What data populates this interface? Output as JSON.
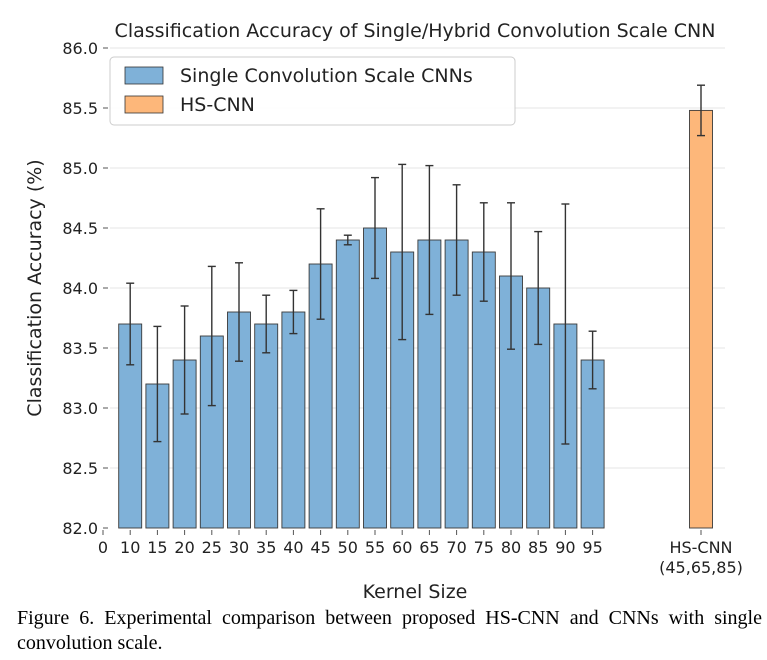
{
  "chart_data": {
    "type": "bar",
    "title": "Classification Accuracy of Single/Hybrid Convolution Scale CNN",
    "xlabel": "Kernel Size",
    "ylabel": "Classification Accuracy (%)",
    "ylim": [
      82.0,
      86.0
    ],
    "yticks": [
      "82.0",
      "82.5",
      "83.0",
      "83.5",
      "84.0",
      "84.5",
      "85.0",
      "85.5",
      "86.0"
    ],
    "x_tick_zero": "0",
    "grid": "horizontal",
    "legend_position": "top-left",
    "series": [
      {
        "name": "Single Convolution Scale CNNs",
        "color": "#7fb1d8",
        "categories": [
          "10",
          "15",
          "20",
          "25",
          "30",
          "35",
          "40",
          "45",
          "50",
          "55",
          "60",
          "65",
          "70",
          "75",
          "80",
          "85",
          "90",
          "95"
        ],
        "values": [
          83.7,
          83.2,
          83.4,
          83.6,
          83.8,
          83.7,
          83.8,
          84.2,
          84.4,
          84.5,
          84.3,
          84.4,
          84.4,
          84.3,
          84.1,
          84.0,
          83.7,
          83.4
        ],
        "errors": [
          0.34,
          0.48,
          0.45,
          0.58,
          0.41,
          0.24,
          0.18,
          0.46,
          0.04,
          0.42,
          0.73,
          0.62,
          0.46,
          0.41,
          0.61,
          0.47,
          1.0,
          0.24
        ]
      },
      {
        "name": "HS-CNN",
        "color": "#fdb77a",
        "categories": [
          "HS-CNN"
        ],
        "category_sublabels": [
          "(45,65,85)"
        ],
        "values": [
          85.48
        ],
        "errors": [
          0.21
        ]
      }
    ]
  },
  "caption": "Figure 6. Experimental comparison between proposed HS-CNN and CNNs with single convolution scale."
}
